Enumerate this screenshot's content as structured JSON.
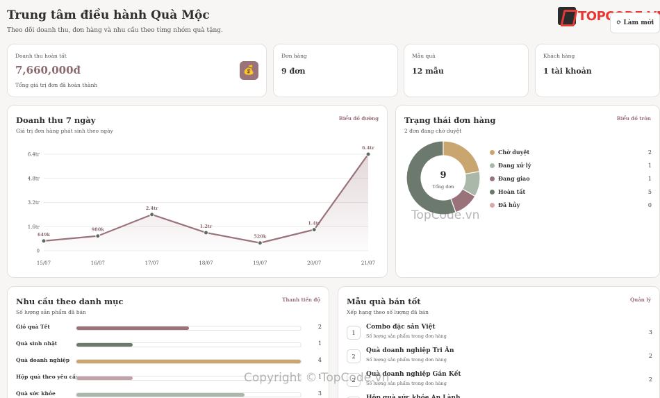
{
  "header": {
    "title": "Trung tâm điều hành Quà Mộc",
    "subtitle": "Theo dõi doanh thu, đơn hàng và nhu cầu theo từng nhóm quà tặng.",
    "refresh_label": "Làm mới",
    "brand": "TOPCODE.VN"
  },
  "kpis": {
    "revenue": {
      "label": "Doanh thu hoàn tất",
      "value": "7,660,000đ",
      "note": "Tổng giá trị đơn đã hoàn thành"
    },
    "orders": {
      "label": "Đơn hàng",
      "value": "9 đơn"
    },
    "products": {
      "label": "Mẫu quà",
      "value": "12 mẫu"
    },
    "customers": {
      "label": "Khách hàng",
      "value": "1 tài khoản"
    }
  },
  "revenue_chart": {
    "title": "Doanh thu 7 ngày",
    "subtitle": "Giá trị đơn hàng phát sinh theo ngày",
    "tag": "Biểu đồ đường",
    "line_color": "#9a727a"
  },
  "status_chart": {
    "title": "Trạng thái đơn hàng",
    "subtitle": "2 đơn đang chờ duyệt",
    "tag": "Biểu đồ tròn",
    "center_value": "9",
    "center_label": "Tổng đơn"
  },
  "category_demand": {
    "title": "Nhu cầu theo danh mục",
    "subtitle": "Số lượng sản phẩm đã bán",
    "tag": "Thanh tiến độ",
    "max": 4,
    "items": [
      {
        "label": "Giỏ quà Tết",
        "value": 2,
        "color": "#9a727a"
      },
      {
        "label": "Quà sinh nhật",
        "value": 1,
        "color": "#6b7a6c"
      },
      {
        "label": "Quà doanh nghiệp",
        "value": 4,
        "color": "#c9a56f"
      },
      {
        "label": "Hộp quà theo yêu cầu",
        "value": 1,
        "color": "#bfa3a8"
      },
      {
        "label": "Quà sức khỏe",
        "value": 3,
        "color": "#a9b8a9"
      }
    ]
  },
  "top_products": {
    "title": "Mẫu quà bán tốt",
    "subtitle": "Xếp hạng theo số lượng đã bán",
    "tag": "Quản lý",
    "items": [
      {
        "rank": "1",
        "name": "Combo đặc sản Việt",
        "note": "Số lượng sản phẩm trong đơn hàng",
        "count": "3"
      },
      {
        "rank": "2",
        "name": "Quà doanh nghiệp Tri Ân",
        "note": "Số lượng sản phẩm trong đơn hàng",
        "count": "2"
      },
      {
        "rank": "2",
        "name": "Quà doanh nghiệp Gắn Kết",
        "note": "Số lượng sản phẩm trong đơn hàng",
        "count": "2"
      },
      {
        "rank": "2",
        "name": "Hộp quà sức khỏe An Lành",
        "note": "",
        "count": ""
      }
    ]
  },
  "watermarks": {
    "mid": "TopCode.vn",
    "bottom": "Copyright © TopCode.vn"
  },
  "chart_data": [
    {
      "type": "line",
      "title": "Doanh thu 7 ngày",
      "categories": [
        "15/07",
        "16/07",
        "17/07",
        "18/07",
        "19/07",
        "20/07",
        "21/07"
      ],
      "values": [
        649000,
        980000,
        2400000,
        1200000,
        520000,
        1400000,
        6400000
      ],
      "data_labels": [
        "649k",
        "980k",
        "2.4tr",
        "1.2tr",
        "520k",
        "1.4tr",
        "6.4tr"
      ],
      "yticks": [
        0,
        1600000,
        3200000,
        4800000,
        6400000
      ],
      "ytick_labels": [
        "0",
        "1.6tr",
        "3.2tr",
        "4.8tr",
        "6.4tr"
      ],
      "ylim": [
        0,
        6400000
      ],
      "grid": true
    },
    {
      "type": "pie",
      "title": "Trạng thái đơn hàng",
      "labels": [
        "Chờ duyệt",
        "Đang xử lý",
        "Đang giao",
        "Hoàn tất",
        "Đã hủy"
      ],
      "values": [
        2,
        1,
        1,
        5,
        0
      ],
      "colors": [
        "#c9a56f",
        "#a9b8a9",
        "#9a727a",
        "#6b7a6c",
        "#d8a7a7"
      ],
      "legend": "right"
    }
  ]
}
